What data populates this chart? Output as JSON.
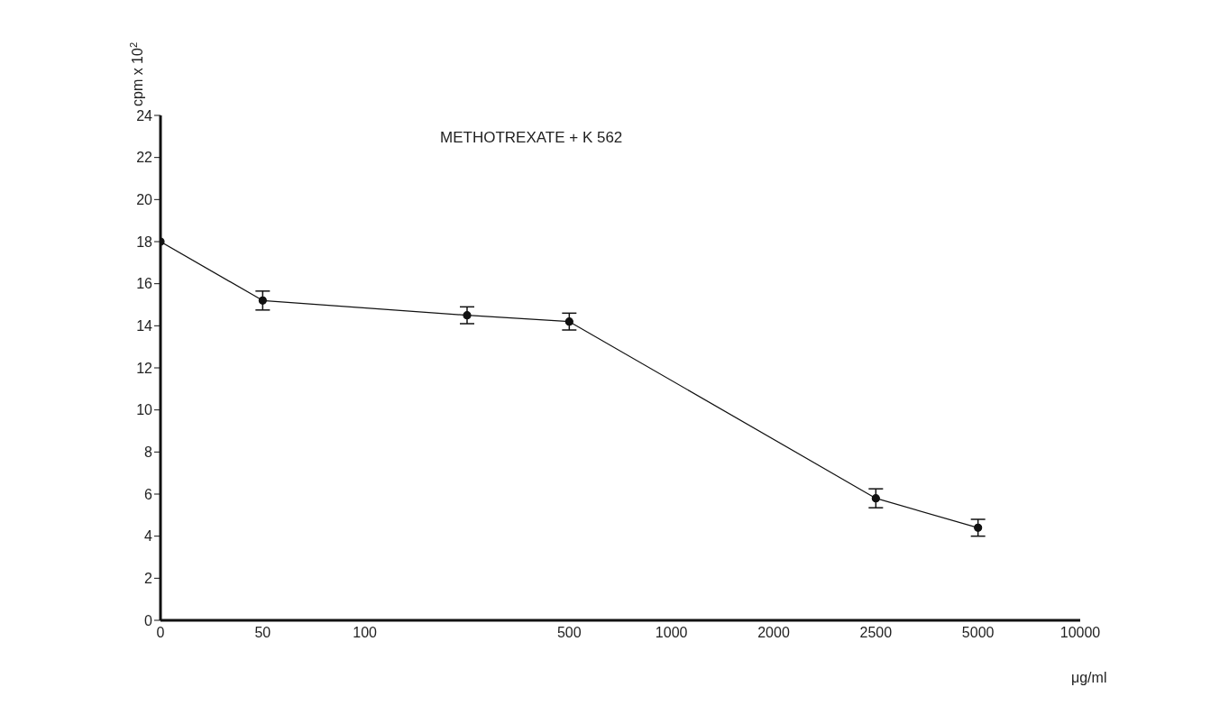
{
  "chart_data": {
    "type": "line",
    "title": "METHOTREXATE + K 562",
    "xlabel": "μg/ml",
    "ylabel": "cpm x 10$^{2}$",
    "categories": [
      "0",
      "50",
      "100",
      null,
      "500",
      "1000",
      "2000",
      "2500",
      "5000",
      "10000"
    ],
    "series": [
      {
        "color": "#111111",
        "values": [
          18,
          15.2,
          null,
          14.5,
          14.2,
          null,
          null,
          5.8,
          4.4,
          null
        ],
        "errors": [
          null,
          0.45,
          null,
          0.4,
          0.4,
          null,
          null,
          0.45,
          0.4,
          null
        ]
      }
    ],
    "ylim": [
      0,
      24
    ],
    "yticks": [
      0,
      2,
      4,
      6,
      8,
      10,
      12,
      14,
      16,
      18,
      20,
      22,
      24
    ],
    "grid": false,
    "marker": "circle",
    "line_style": "solid"
  }
}
